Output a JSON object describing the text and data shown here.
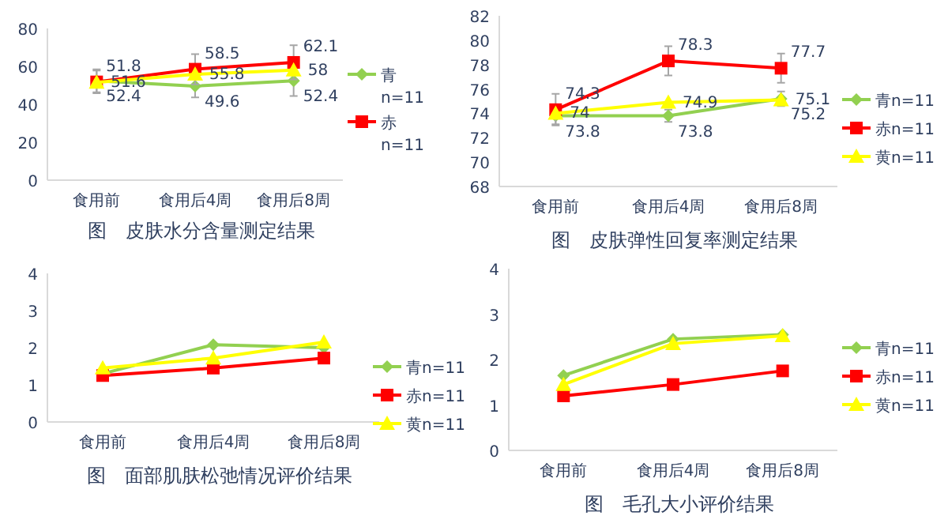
{
  "chart_data": [
    {
      "type": "line",
      "title": "图　皮肤水分含量测定结果",
      "categories": [
        "食用前",
        "食用后4周",
        "食用后8周"
      ],
      "ylim": [
        0,
        80
      ],
      "yticks": [
        0,
        20,
        40,
        60,
        80
      ],
      "grid": false,
      "legend": "right",
      "series": [
        {
          "name": "青n=11",
          "color": "#92d050",
          "marker": "diamond",
          "values": [
            52.4,
            49.6,
            52.4
          ],
          "value_labels": [
            "52.4",
            "49.6",
            "52.4"
          ],
          "errors": [
            6,
            6,
            8
          ]
        },
        {
          "name": "赤n=11",
          "color": "#ff0000",
          "marker": "square",
          "values": [
            51.8,
            58.5,
            62.1
          ],
          "value_labels": [
            "51.8",
            "58.5",
            "62.1"
          ],
          "errors": [
            6,
            8,
            9
          ]
        },
        {
          "color": "#ffff00",
          "marker": "triangle",
          "values": [
            51.6,
            55.8,
            58
          ],
          "value_labels": [
            "51.6",
            "55.8",
            "58"
          ]
        }
      ]
    },
    {
      "type": "line",
      "title": "图　皮肤弹性回复率测定结果",
      "categories": [
        "食用前",
        "食用后4周",
        "食用后8周"
      ],
      "ylim": [
        68,
        82
      ],
      "yticks": [
        68,
        70,
        72,
        74,
        76,
        78,
        80,
        82
      ],
      "grid": false,
      "legend": "right",
      "data_labels": true,
      "series": [
        {
          "name": "青n=11",
          "color": "#92d050",
          "marker": "diamond",
          "values": [
            73.8,
            73.8,
            75.2
          ],
          "errors": [
            0.7,
            0.5,
            0.6
          ]
        },
        {
          "name": "赤n=11",
          "color": "#ff0000",
          "marker": "square",
          "values": [
            74.3,
            78.3,
            77.7
          ],
          "errors": [
            1.3,
            1.2,
            1.2
          ]
        },
        {
          "name": "黄n=11",
          "color": "#ffff00",
          "marker": "triangle",
          "values": [
            74,
            74.9,
            75.1
          ]
        }
      ]
    },
    {
      "type": "line",
      "title": "图　面部肌肤松弛情况评价结果",
      "categories": [
        "食用前",
        "食用后4周",
        "食用后8周"
      ],
      "ylim": [
        0,
        4
      ],
      "yticks": [
        0,
        1,
        2,
        3,
        4
      ],
      "grid": false,
      "legend": "right",
      "series": [
        {
          "name": "青n=11",
          "color": "#92d050",
          "marker": "diamond",
          "values": [
            1.3,
            2.08,
            2.0
          ]
        },
        {
          "name": "赤n=11",
          "color": "#ff0000",
          "marker": "square",
          "values": [
            1.25,
            1.45,
            1.72
          ]
        },
        {
          "name": "黄n=11",
          "color": "#ffff00",
          "marker": "triangle",
          "values": [
            1.45,
            1.72,
            2.15
          ]
        }
      ]
    },
    {
      "type": "line",
      "title": "图　毛孔大小评价结果",
      "categories": [
        "食用前",
        "食用后4周",
        "食用后8周"
      ],
      "ylim": [
        0,
        4
      ],
      "yticks": [
        0,
        1,
        2,
        3,
        4
      ],
      "grid": false,
      "legend": "right",
      "series": [
        {
          "name": "青n=11",
          "color": "#92d050",
          "marker": "diamond",
          "values": [
            1.65,
            2.45,
            2.55
          ]
        },
        {
          "name": "赤n=11",
          "color": "#ff0000",
          "marker": "square",
          "values": [
            1.2,
            1.45,
            1.75
          ]
        },
        {
          "name": "黄n=11",
          "color": "#ffff00",
          "marker": "triangle",
          "values": [
            1.45,
            2.35,
            2.52
          ]
        }
      ]
    }
  ]
}
